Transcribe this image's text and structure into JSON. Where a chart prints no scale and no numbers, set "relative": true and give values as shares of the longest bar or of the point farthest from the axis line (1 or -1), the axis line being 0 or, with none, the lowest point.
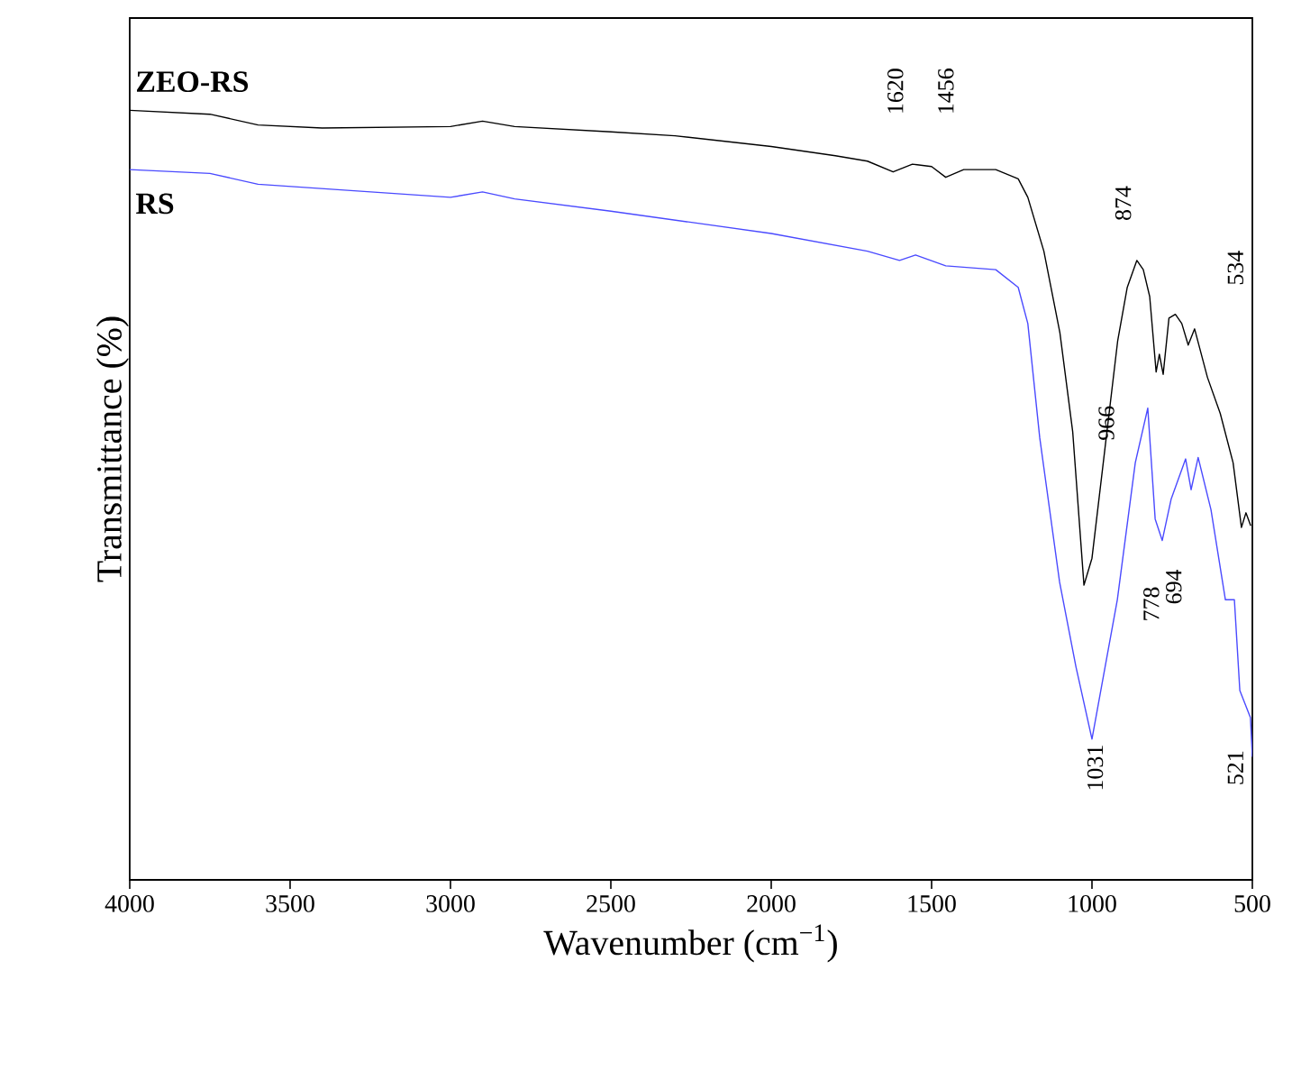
{
  "chart_data": {
    "type": "line",
    "relative": true,
    "xlabel": "Wavenumber (cm$^{−1}$)",
    "ylabel": "Transmittance (%)",
    "xlim": [
      4000,
      500
    ],
    "xticks": [
      4000,
      3500,
      3000,
      2500,
      2000,
      1500,
      1000,
      500
    ],
    "grid": false,
    "line_style": "solid",
    "series": [
      {
        "name": "ZEO-RS",
        "color": "#000000",
        "x": [
          4000,
          3750,
          3600,
          3400,
          3000,
          2900,
          2800,
          2500,
          2300,
          2000,
          1800,
          1700,
          1620,
          1560,
          1500,
          1456,
          1400,
          1300,
          1230,
          1200,
          1150,
          1100,
          1060,
          1025,
          1000,
          960,
          920,
          890,
          860,
          840,
          820,
          800,
          790,
          778,
          760,
          740,
          720,
          700,
          680,
          640,
          600,
          560,
          534,
          520,
          505
        ],
        "values": [
          1.0,
          0.995,
          0.981,
          0.977,
          0.979,
          0.986,
          0.979,
          0.972,
          0.967,
          0.953,
          0.941,
          0.934,
          0.92,
          0.93,
          0.927,
          0.913,
          0.923,
          0.923,
          0.911,
          0.887,
          0.817,
          0.711,
          0.582,
          0.383,
          0.418,
          0.559,
          0.7,
          0.77,
          0.805,
          0.793,
          0.758,
          0.66,
          0.683,
          0.657,
          0.73,
          0.735,
          0.723,
          0.695,
          0.716,
          0.653,
          0.606,
          0.542,
          0.458,
          0.477,
          0.46
        ]
      },
      {
        "name": "RS",
        "color": "#4a4aff",
        "x": [
          4000,
          3750,
          3600,
          3000,
          2900,
          2800,
          2500,
          2000,
          1700,
          1600,
          1550,
          1456,
          1300,
          1230,
          1200,
          1163,
          1101,
          1050,
          1000,
          921,
          865,
          826,
          803,
          781,
          753,
          708,
          691,
          669,
          629,
          584,
          556,
          539,
          506,
          500
        ],
        "values": [
          0.923,
          0.918,
          0.904,
          0.887,
          0.894,
          0.885,
          0.869,
          0.84,
          0.817,
          0.805,
          0.812,
          0.798,
          0.793,
          0.77,
          0.723,
          0.575,
          0.387,
          0.277,
          0.183,
          0.364,
          0.542,
          0.613,
          0.469,
          0.441,
          0.495,
          0.547,
          0.507,
          0.549,
          0.481,
          0.364,
          0.364,
          0.246,
          0.211,
          0.16
        ]
      }
    ],
    "annotations": [
      "1620",
      "1456",
      "874",
      "534",
      "966",
      "778",
      "694",
      "1031",
      "521"
    ]
  }
}
